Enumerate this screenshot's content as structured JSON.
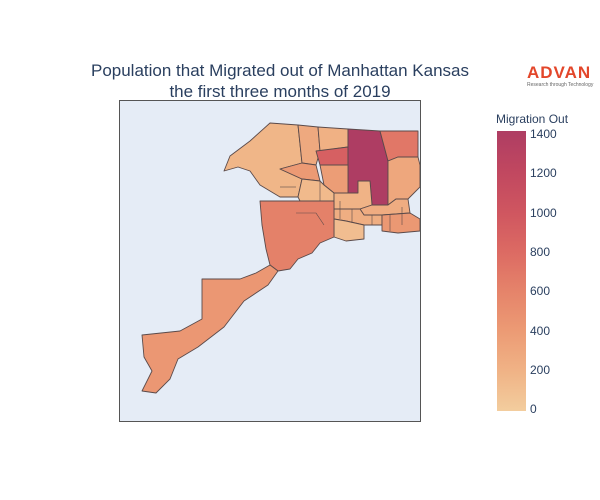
{
  "title": {
    "line1": "Population that Migrated out of Manhattan Kansas",
    "line2": "the first three months of 2019"
  },
  "logo": {
    "word": "ADVAN",
    "tagline": "Research through Technology",
    "color": "#e3462a"
  },
  "colorbar": {
    "title": "Migration Out",
    "ticks": [
      "1400",
      "1200",
      "1000",
      "800",
      "600",
      "400",
      "200",
      "0"
    ],
    "colors": [
      "#f3cd9e",
      "#f0b386",
      "#ec9a74",
      "#e5836a",
      "#dc6a63",
      "#cf5660",
      "#c04760",
      "#ae3d63"
    ],
    "range": [
      0,
      1400
    ]
  },
  "map": {
    "background": "#e5ecf6",
    "outline": "#5a4a4a",
    "regions": [
      {
        "id": "north-west",
        "value": 180
      },
      {
        "id": "north-mid-a",
        "value": 280
      },
      {
        "id": "north-mid-b",
        "value": 220
      },
      {
        "id": "north-center",
        "value": 400
      },
      {
        "id": "north-dark",
        "value": 1400
      },
      {
        "id": "north-east",
        "value": 700
      },
      {
        "id": "center-red",
        "value": 900
      },
      {
        "id": "center-east",
        "value": 380
      },
      {
        "id": "east-strip",
        "value": 300
      },
      {
        "id": "center-block-a",
        "value": 150
      },
      {
        "id": "center-block-b",
        "value": 200
      },
      {
        "id": "center-block-c",
        "value": 260
      },
      {
        "id": "south-east-small",
        "value": 240
      },
      {
        "id": "east-low",
        "value": 420
      },
      {
        "id": "center-south",
        "value": 120
      },
      {
        "id": "central-large",
        "value": 620
      },
      {
        "id": "south-tail",
        "value": 430
      }
    ]
  }
}
